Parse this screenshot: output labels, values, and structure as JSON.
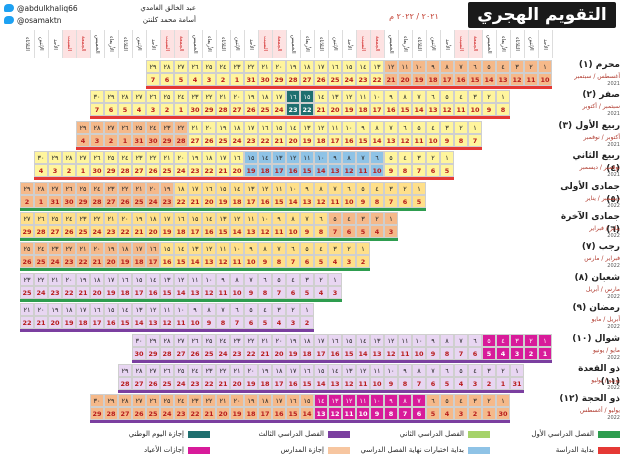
{
  "header": {
    "title": "التقويم الهجري ١٤٤٣ هـ",
    "subtitle": "٢٠٢١ / ٢٠٢٢ م",
    "twitter_1": "@abdulkhaliq66",
    "twitter_2": "@osamaktn",
    "author_1": "عبد الخالق الغامدي",
    "author_2": "أسامة محمد كلنتن"
  },
  "day_headers": [
    "الأحد",
    "الإثنين",
    "الثلاثاء",
    "الأربعاء",
    "الخميس",
    "الجمعة",
    "السبت"
  ],
  "months": [
    {
      "name": "محرم (١)",
      "greg": "أغسطس / سبتمبر",
      "year": "2021"
    },
    {
      "name": "صفر (٢)",
      "greg": "سبتمبر / أكتوبر",
      "year": "2021"
    },
    {
      "name": "ربيع الأول (٣)",
      "greg": "أكتوبر / نوفمبر",
      "year": "2021"
    },
    {
      "name": "ربيع الثاني (٤)",
      "greg": "نوفمبر / ديسمبر",
      "year": "2021"
    },
    {
      "name": "جمادى الأولى (٥)",
      "greg": "ديسمبر / يناير",
      "year": "2022"
    },
    {
      "name": "جمادى الآخرة (٦)",
      "greg": "يناير / فبراير",
      "year": "2022"
    },
    {
      "name": "رجب (٧)",
      "greg": "فبراير / مارس",
      "year": "2022"
    },
    {
      "name": "شعبان (٨)",
      "greg": "مارس / أبريل",
      "year": "2022"
    },
    {
      "name": "رمضان (٩)",
      "greg": "أبريل / مايو",
      "year": "2022"
    },
    {
      "name": "شوال (١٠)",
      "greg": "مايو / يونيو",
      "year": "2022"
    },
    {
      "name": "ذو القعدة (١١)",
      "greg": "يونيو / يوليو",
      "year": "2022"
    },
    {
      "name": "ذو الحجة (١٢)",
      "greg": "يوليو / أغسطس",
      "year": "2022"
    }
  ],
  "legend": [
    {
      "label": "الفصل الدراسي الأول",
      "color": "#2e9d4f"
    },
    {
      "label": "الفصل الدراسي الثاني",
      "color": "#a6d36a"
    },
    {
      "label": "الفصل الدراسي الثالث",
      "color": "#7b3fa0"
    },
    {
      "label": "إجازة اليوم الوطني",
      "color": "#1f6f6f"
    },
    {
      "label": "بداية الدراسة",
      "color": "#e53935"
    },
    {
      "label": "بداية اختبارات نهاية الفصل الدراسي",
      "color": "#8fc3e6"
    },
    {
      "label": "إجازة المدارس",
      "color": "#f7c6a0"
    },
    {
      "label": "إجازات الأعياد",
      "color": "#d81b9a"
    }
  ],
  "colors": {
    "term1": "#fff59d",
    "term2": "#ffe08a",
    "term3": "#e8d6f2",
    "holiday": "#f5b98a",
    "eid": "#d81b9a",
    "exam": "#8fc3e6",
    "national": "#1f6f6f",
    "plain": "#ffffff"
  }
}
